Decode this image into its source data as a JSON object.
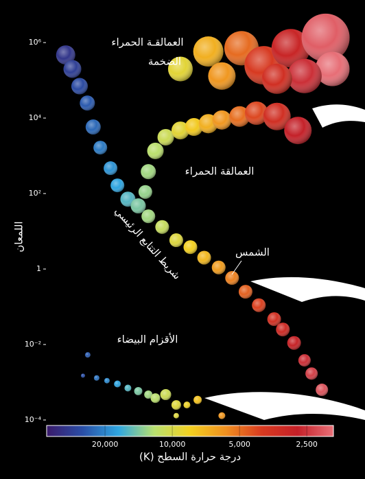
{
  "chart_data": {
    "type": "scatter",
    "ylabel": "اللمعان",
    "xlabel": "درجة حرارة السطح (K)",
    "annotations": [
      "العمالقـة الحمراء",
      "الضخمة",
      "العمالقة الحمراء",
      "شريط التتابع الرئيسي",
      "الشمس",
      "الأقزام البيضاء"
    ],
    "xscale": "log",
    "yscale": "log",
    "xlim": [
      36500,
      1900
    ],
    "ylim": [
      0.0001,
      5000000
    ],
    "xticks": [
      {
        "value": 20000,
        "label": "20,000"
      },
      {
        "value": 10000,
        "label": "10,000"
      },
      {
        "value": 5000,
        "label": "5,000"
      },
      {
        "value": 2500,
        "label": "2,500"
      }
    ],
    "yticks": [
      {
        "value": 1000000,
        "label": "10⁶"
      },
      {
        "value": 10000,
        "label": "10⁴"
      },
      {
        "value": 100,
        "label": "10²"
      },
      1,
      {
        "value": 0.01,
        "label": "10⁻²"
      },
      {
        "value": 0.0001,
        "label": "10⁻⁴"
      }
    ],
    "colorscale": [
      "#3a1a6a",
      "#2a4ea6",
      "#2fa6e0",
      "#b8e070",
      "#f2d020",
      "#f09020",
      "#d83a20",
      "#c42028",
      "#e87078"
    ],
    "series": [
      {
        "x": [
          9200,
          6900,
          6000,
          4900,
          3900,
          2950,
          2060,
          1920,
          2560,
          3400
        ],
        "values": [
          200000,
          580000,
          130000,
          710000,
          250000,
          710000,
          1350000,
          200000,
          130000,
          110000
        ],
        "sizes": [
          18,
          22,
          20,
          25,
          28,
          28,
          35,
          25,
          25,
          22
        ]
      },
      {
        "x": [
          13200,
          12800,
          11900,
          10700,
          9200,
          8000,
          6900,
          6000,
          5000,
          4200,
          3400,
          2740
        ],
        "values": [
          110,
          380,
          1350,
          3100,
          4700,
          5800,
          7100,
          8900,
          11000,
          13500,
          11000,
          4700
        ],
        "sizes": [
          10,
          11,
          12,
          12,
          13,
          13,
          14,
          14,
          15,
          17,
          20,
          20
        ]
      },
      {
        "x": [
          30000,
          28000,
          26000,
          24000,
          22600,
          21000,
          18900,
          17600,
          15800,
          14200,
          12800,
          11100,
          9600,
          8300,
          7200,
          6200,
          5400,
          4700,
          4100,
          3500,
          3200,
          2850,
          2560,
          2380,
          2140
        ],
        "values": [
          470000,
          200000,
          70000,
          25000,
          5800,
          1650,
          470,
          165,
          71,
          47,
          25,
          13,
          5.8,
          3.8,
          2,
          1.1,
          0.58,
          0.25,
          0.11,
          0.047,
          0.025,
          0.011,
          0.0038,
          0.0017,
          0.00063
        ],
        "sizes": [
          14,
          13,
          12,
          11,
          11,
          10,
          10,
          10,
          11,
          11,
          10,
          10,
          10,
          10,
          10,
          10,
          10,
          10,
          10,
          10,
          10,
          10,
          9,
          9,
          9
        ]
      },
      {
        "x": [
          23900,
          25100,
          21800,
          19600,
          17600,
          15800,
          14200,
          12800,
          11900,
          10700,
          9600,
          8600,
          7700,
          6000,
          9600
        ],
        "values": [
          0.0053,
          0.0015,
          0.0013,
          0.0011,
          0.0009,
          0.0007,
          0.00058,
          0.00047,
          0.00038,
          0.00047,
          0.00025,
          0.00025,
          0.00034,
          0.00013,
          0.00013
        ],
        "sizes": [
          4,
          3,
          4,
          4,
          5,
          5,
          6,
          6,
          7,
          8,
          7,
          5,
          6,
          5,
          4
        ]
      }
    ]
  }
}
